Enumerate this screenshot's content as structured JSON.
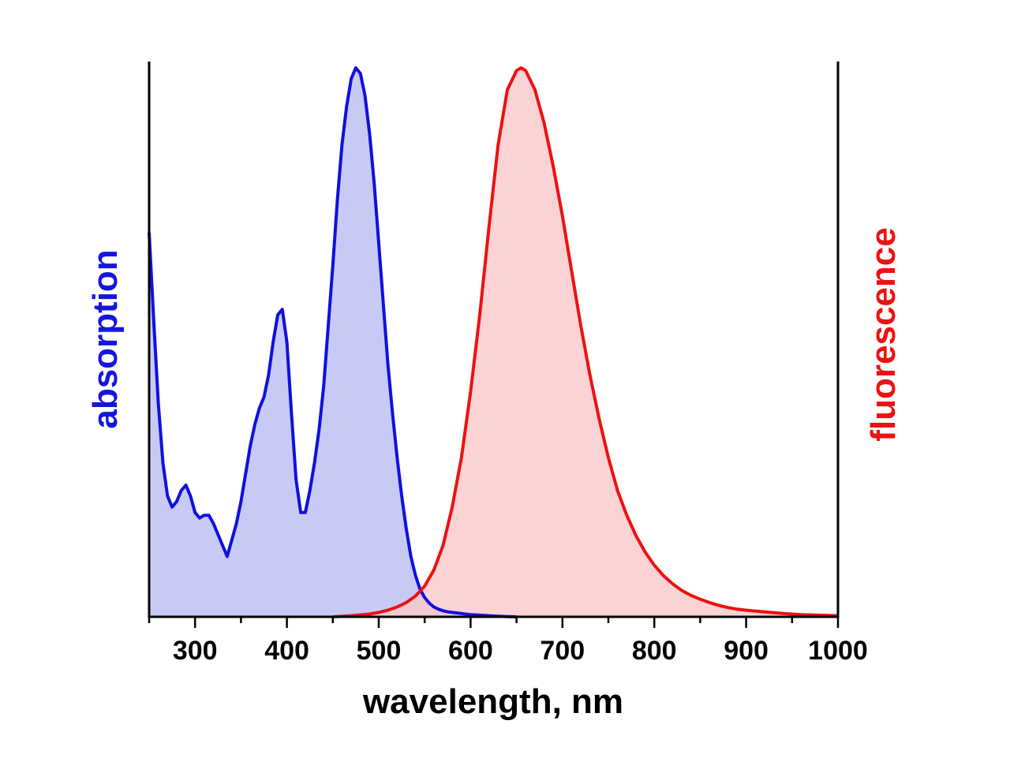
{
  "chart_data": {
    "type": "area",
    "xlabel": "wavelength, nm",
    "ylabel_left": "absorption",
    "ylabel_right": "fluorescence",
    "xlim": [
      250,
      1000
    ],
    "ylim": [
      0,
      1
    ],
    "x_ticks": [
      300,
      400,
      500,
      600,
      700,
      800,
      900,
      1000
    ],
    "x_minor_step": 50,
    "grid": false,
    "colors": {
      "absorption_line": "#1010dd",
      "absorption_fill": "#c8caf6",
      "fluorescence_line": "#ee1111",
      "fluorescence_fill": "#fbc8ca"
    },
    "series": [
      {
        "name": "absorption",
        "axis": "left",
        "x": [
          250,
          255,
          260,
          265,
          270,
          275,
          280,
          285,
          290,
          295,
          300,
          305,
          310,
          315,
          320,
          325,
          330,
          335,
          340,
          345,
          350,
          355,
          360,
          365,
          370,
          375,
          380,
          385,
          390,
          395,
          400,
          405,
          410,
          415,
          420,
          425,
          430,
          435,
          440,
          445,
          450,
          455,
          460,
          465,
          470,
          475,
          480,
          485,
          490,
          495,
          500,
          505,
          510,
          515,
          520,
          525,
          530,
          535,
          540,
          545,
          550,
          555,
          560,
          565,
          570,
          575,
          580,
          590,
          600,
          610,
          620,
          630,
          640,
          650
        ],
        "y": [
          0.7,
          0.54,
          0.39,
          0.28,
          0.22,
          0.2,
          0.21,
          0.23,
          0.24,
          0.22,
          0.19,
          0.18,
          0.185,
          0.185,
          0.17,
          0.15,
          0.13,
          0.11,
          0.14,
          0.17,
          0.21,
          0.26,
          0.31,
          0.35,
          0.38,
          0.4,
          0.44,
          0.5,
          0.55,
          0.56,
          0.5,
          0.37,
          0.25,
          0.19,
          0.19,
          0.23,
          0.28,
          0.34,
          0.42,
          0.53,
          0.64,
          0.76,
          0.86,
          0.93,
          0.98,
          1.0,
          0.99,
          0.95,
          0.88,
          0.79,
          0.68,
          0.57,
          0.46,
          0.37,
          0.29,
          0.22,
          0.16,
          0.11,
          0.075,
          0.05,
          0.035,
          0.025,
          0.018,
          0.014,
          0.011,
          0.009,
          0.008,
          0.006,
          0.004,
          0.003,
          0.002,
          0.001,
          0.0005,
          0.0
        ]
      },
      {
        "name": "fluorescence",
        "axis": "right",
        "x": [
          450,
          470,
          490,
          500,
          510,
          520,
          530,
          540,
          550,
          560,
          570,
          580,
          590,
          600,
          610,
          620,
          630,
          640,
          650,
          655,
          660,
          670,
          680,
          690,
          700,
          710,
          720,
          730,
          740,
          750,
          760,
          770,
          780,
          790,
          800,
          810,
          820,
          830,
          840,
          850,
          860,
          870,
          880,
          890,
          900,
          920,
          940,
          960,
          980,
          1000
        ],
        "y": [
          0.0,
          0.002,
          0.005,
          0.008,
          0.012,
          0.018,
          0.026,
          0.038,
          0.056,
          0.085,
          0.13,
          0.2,
          0.29,
          0.41,
          0.55,
          0.71,
          0.86,
          0.96,
          0.995,
          1.0,
          0.995,
          0.96,
          0.9,
          0.82,
          0.73,
          0.63,
          0.53,
          0.44,
          0.36,
          0.29,
          0.23,
          0.185,
          0.148,
          0.118,
          0.094,
          0.075,
          0.06,
          0.048,
          0.039,
          0.032,
          0.026,
          0.021,
          0.017,
          0.014,
          0.012,
          0.009,
          0.006,
          0.004,
          0.003,
          0.002
        ]
      }
    ]
  }
}
